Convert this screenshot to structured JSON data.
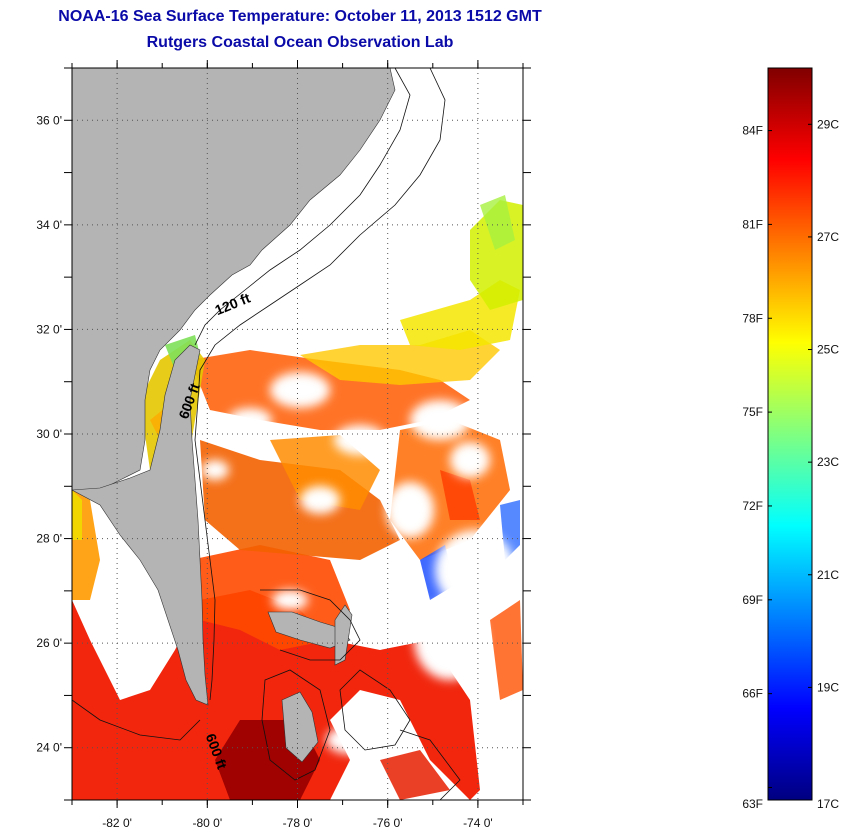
{
  "header": {
    "title": "NOAA-16 Sea Surface Temperature:  October 11, 2013 1512 GMT",
    "subtitle": "Rutgers Coastal Ocean Observation Lab"
  },
  "map": {
    "lon_range": [
      -83,
      -73
    ],
    "lat_range": [
      23,
      37
    ],
    "lon_ticks": [
      {
        "value": -82,
        "label": "-82 0'"
      },
      {
        "value": -80,
        "label": "-80 0'"
      },
      {
        "value": -78,
        "label": "-78 0'"
      },
      {
        "value": -76,
        "label": "-76 0'"
      },
      {
        "value": -74,
        "label": "-74 0'"
      }
    ],
    "lat_ticks": [
      {
        "value": 24,
        "label": "24 0'"
      },
      {
        "value": 26,
        "label": "26 0'"
      },
      {
        "value": 28,
        "label": "28 0'"
      },
      {
        "value": 30,
        "label": "30 0'"
      },
      {
        "value": 32,
        "label": "32 0'"
      },
      {
        "value": 34,
        "label": "34 0'"
      },
      {
        "value": 36,
        "label": "36 0'"
      }
    ],
    "contour_labels": [
      {
        "text": "120 ft",
        "lon": -79.4,
        "lat": 32.4,
        "rotate": -22
      },
      {
        "text": "600 ft",
        "lon": -80.3,
        "lat": 30.6,
        "rotate": -70
      },
      {
        "text": "600 ft",
        "lon": -79.9,
        "lat": 23.9,
        "rotate": 70
      }
    ],
    "grid": true,
    "colors": {
      "land": "#b4b4b4",
      "no_data": "#ffffff",
      "contour": "#000000",
      "grid": "#555555"
    }
  },
  "colorbar": {
    "min_c": 17,
    "max_c": 30,
    "celsius_ticks": [
      {
        "value": 17,
        "label": "17C"
      },
      {
        "value": 19,
        "label": "19C"
      },
      {
        "value": 21,
        "label": "21C"
      },
      {
        "value": 23,
        "label": "23C"
      },
      {
        "value": 25,
        "label": "25C"
      },
      {
        "value": 27,
        "label": "27C"
      },
      {
        "value": 29,
        "label": "29C"
      }
    ],
    "fahrenheit_ticks": [
      {
        "value": 63,
        "label": "63F"
      },
      {
        "value": 66,
        "label": "66F"
      },
      {
        "value": 69,
        "label": "69F"
      },
      {
        "value": 72,
        "label": "72F"
      },
      {
        "value": 75,
        "label": "75F"
      },
      {
        "value": 78,
        "label": "78F"
      },
      {
        "value": 81,
        "label": "81F"
      },
      {
        "value": 84,
        "label": "84F"
      }
    ],
    "colormap": [
      "#000080",
      "#0000ff",
      "#0080ff",
      "#00ffff",
      "#80ff80",
      "#ffff00",
      "#ff8000",
      "#ff0000",
      "#800000"
    ]
  }
}
